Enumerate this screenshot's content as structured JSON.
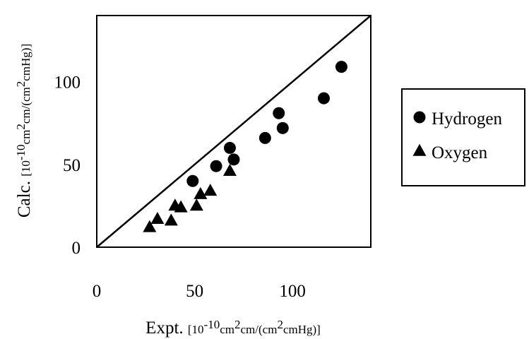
{
  "chart_data": {
    "type": "scatter",
    "x_ticks": [
      "0",
      "50",
      "100"
    ],
    "y_ticks": [
      "0",
      "50",
      "100"
    ],
    "xlim": [
      0,
      140
    ],
    "ylim": [
      0,
      140
    ],
    "xlabel": {
      "main": "Expt. ",
      "unit_parts": [
        "[10",
        "-10",
        "cm",
        "2",
        "cm/(cm",
        "2",
        "cmHg)]"
      ]
    },
    "ylabel": {
      "main": "Calc. ",
      "unit_parts": [
        "[10",
        "-10",
        "cm",
        "2",
        "cm/(cm",
        "2",
        "cmHg)]"
      ]
    },
    "reference_line": {
      "from": [
        0,
        0
      ],
      "to": [
        140,
        140
      ]
    },
    "legend_position": "right",
    "series": [
      {
        "name": "Hydrogen",
        "marker": "circle",
        "points": [
          [
            49,
            40
          ],
          [
            61,
            49
          ],
          [
            68,
            60
          ],
          [
            70,
            53
          ],
          [
            86,
            66
          ],
          [
            93,
            81
          ],
          [
            95,
            72
          ],
          [
            116,
            90
          ],
          [
            125,
            109
          ]
        ]
      },
      {
        "name": "Oxygen",
        "marker": "triangle",
        "points": [
          [
            27,
            12
          ],
          [
            31,
            17
          ],
          [
            38,
            16
          ],
          [
            40,
            25
          ],
          [
            43,
            24
          ],
          [
            51,
            25
          ],
          [
            53,
            32
          ],
          [
            58,
            34
          ],
          [
            68,
            46
          ]
        ]
      }
    ]
  }
}
